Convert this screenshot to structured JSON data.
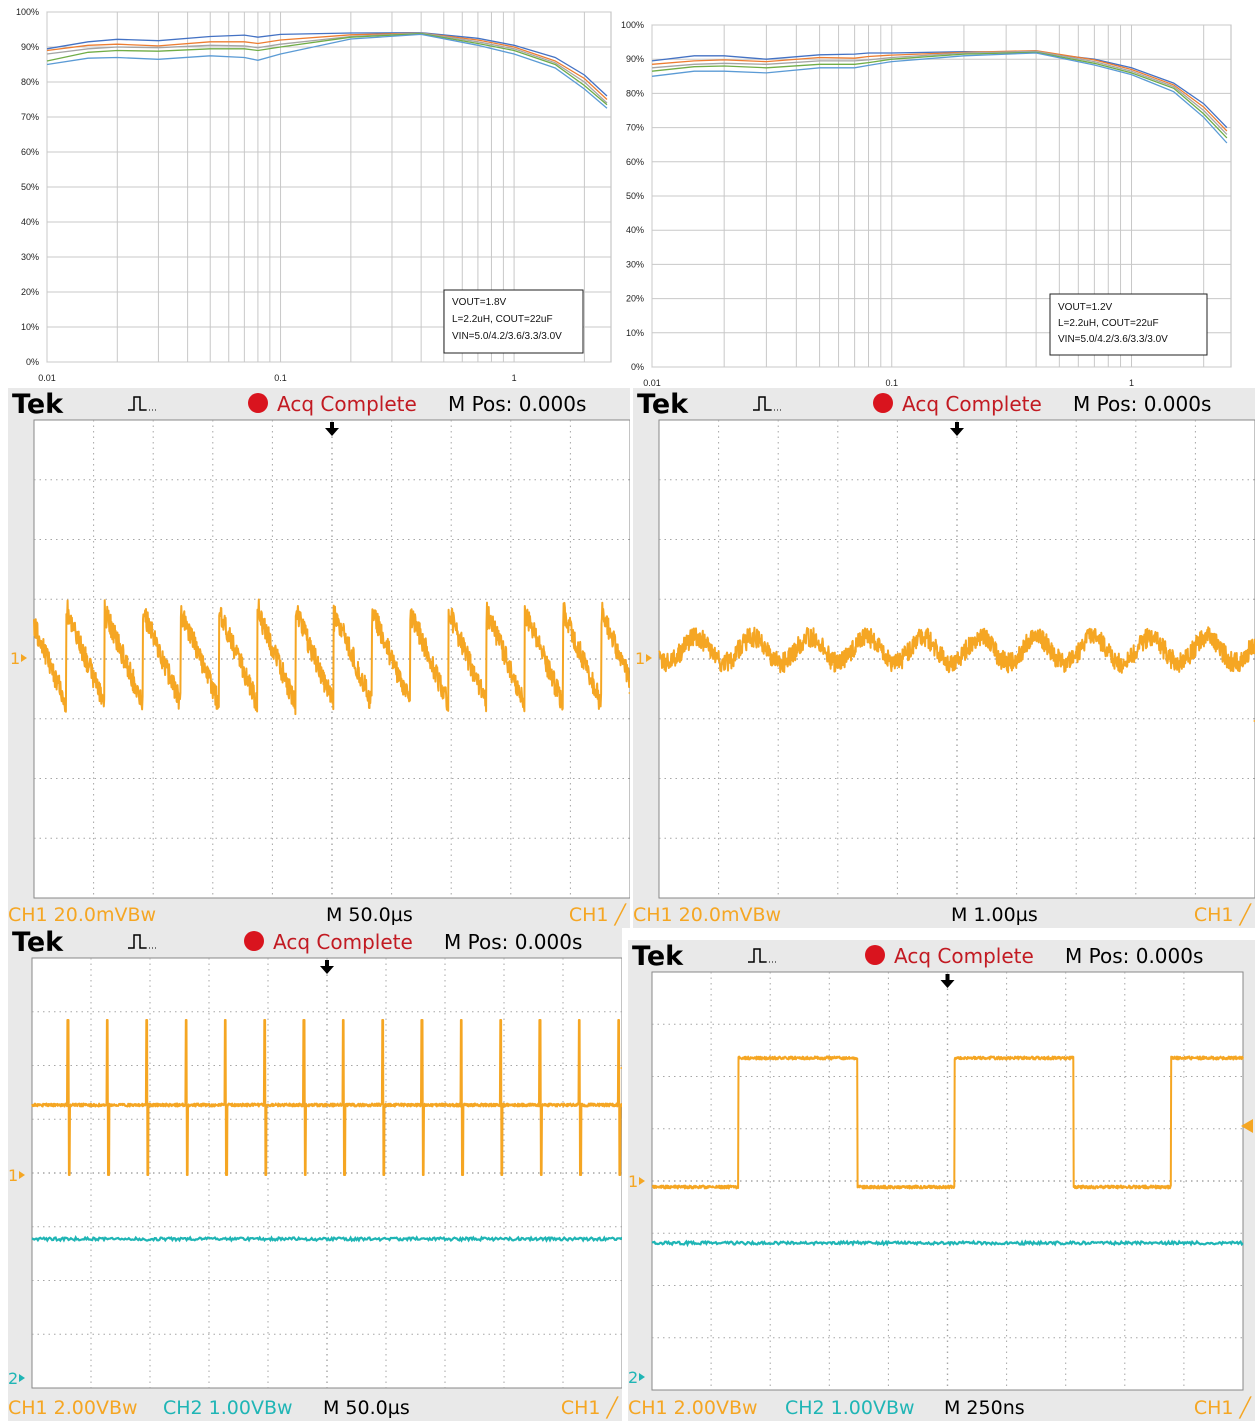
{
  "efficiency_charts": [
    {
      "legend": [
        "VOUT=1.8V",
        "L=2.2uH, COUT=22uF",
        "VIN=5.0/4.2/3.6/3.3/3.0V"
      ],
      "y_ticks": [
        "100%",
        "90%",
        "80%",
        "70%",
        "60%",
        "50%",
        "40%",
        "30%",
        "20%",
        "10%",
        "0%"
      ],
      "x_ticks": [
        "0.01",
        "0.1",
        "1"
      ]
    },
    {
      "legend": [
        "VOUT=1.2V",
        "L=2.2uH, COUT=22uF",
        "VIN=5.0/4.2/3.6/3.3/3.0V"
      ],
      "y_ticks": [
        "100%",
        "90%",
        "80%",
        "70%",
        "60%",
        "50%",
        "40%",
        "30%",
        "20%",
        "10%",
        "0%"
      ],
      "x_ticks": [
        "0.01",
        "0.1",
        "1"
      ]
    }
  ],
  "scopes": [
    {
      "brand": "Tek",
      "status": "Acq Complete",
      "mpos": "M Pos: 0.000s",
      "ch1_scale": "CH1  20.0mVBw",
      "ch2_scale": "",
      "timebase": "M 50.0µs",
      "trigger": "CH1 ╱",
      "ch1_marker": "1",
      "ch2_marker": ""
    },
    {
      "brand": "Tek",
      "status": "Acq Complete",
      "mpos": "M Pos: 0.000s",
      "ch1_scale": "CH1  20.0mVBw",
      "ch2_scale": "",
      "timebase": "M 1.00µs",
      "trigger": "CH1 ╱",
      "ch1_marker": "1",
      "ch2_marker": ""
    },
    {
      "brand": "Tek",
      "status": "Acq Complete",
      "mpos": "M Pos: 0.000s",
      "ch1_scale": "CH1  2.00VBw",
      "ch2_scale": "CH2  1.00VBw",
      "timebase": "M 50.0µs",
      "trigger": "CH1 ╱",
      "ch1_marker": "1",
      "ch2_marker": "2"
    },
    {
      "brand": "Tek",
      "status": "Acq Complete",
      "mpos": "M Pos: 0.000s",
      "ch1_scale": "CH1  2.00VBw",
      "ch2_scale": "CH2  1.00VBw",
      "timebase": "M 250ns",
      "trigger": "CH1 ╱",
      "ch1_marker": "1",
      "ch2_marker": "2"
    }
  ],
  "colors": {
    "ch1": "#f5a623",
    "ch2": "#1fb5b5",
    "status_dot": "#d9141e",
    "status_text": "#c21a22",
    "series": [
      "#4472c4",
      "#ed7d31",
      "#a5a5a5",
      "#70ad47",
      "#5b9bd5"
    ]
  },
  "chart_data": [
    {
      "type": "line",
      "xscale": "log",
      "xlim": [
        0.01,
        2.6
      ],
      "ylim": [
        0,
        100
      ],
      "grid": true,
      "legend_position": "bottom-right",
      "series": [
        {
          "x": [
            0.01,
            0.015,
            0.02,
            0.03,
            0.05,
            0.07,
            0.08,
            0.1,
            0.2,
            0.4,
            0.7,
            1.0,
            1.5,
            2.0,
            2.5
          ],
          "y": [
            89.5,
            91.5,
            92.2,
            91.8,
            93.0,
            93.4,
            92.8,
            93.6,
            94.0,
            94.1,
            92.5,
            90.5,
            87.0,
            82.0,
            76.0
          ]
        },
        {
          "x": [
            0.01,
            0.015,
            0.02,
            0.03,
            0.05,
            0.07,
            0.08,
            0.1,
            0.2,
            0.4,
            0.7,
            1.0,
            1.5,
            2.0,
            2.5
          ],
          "y": [
            89.0,
            90.5,
            90.8,
            90.3,
            91.5,
            91.5,
            91.0,
            92.0,
            93.5,
            94.0,
            92.0,
            90.0,
            86.0,
            81.0,
            75.0
          ]
        },
        {
          "x": [
            0.01,
            0.015,
            0.02,
            0.03,
            0.05,
            0.07,
            0.08,
            0.1,
            0.2,
            0.4,
            0.7,
            1.0,
            1.5,
            2.0,
            2.5
          ],
          "y": [
            88.0,
            89.5,
            90.0,
            89.8,
            90.5,
            90.3,
            89.8,
            90.8,
            93.0,
            94.0,
            91.5,
            89.5,
            85.5,
            80.0,
            74.0
          ]
        },
        {
          "x": [
            0.01,
            0.015,
            0.02,
            0.03,
            0.05,
            0.07,
            0.08,
            0.1,
            0.2,
            0.4,
            0.7,
            1.0,
            1.5,
            2.0,
            2.5
          ],
          "y": [
            86.0,
            88.5,
            89.0,
            88.8,
            89.5,
            89.5,
            89.0,
            90.0,
            92.8,
            93.8,
            91.0,
            89.0,
            85.0,
            79.0,
            73.5
          ]
        },
        {
          "x": [
            0.01,
            0.015,
            0.02,
            0.03,
            0.05,
            0.07,
            0.08,
            0.1,
            0.2,
            0.4,
            0.7,
            1.0,
            1.5,
            2.0,
            2.5
          ],
          "y": [
            85.0,
            86.8,
            87.0,
            86.5,
            87.5,
            87.0,
            86.2,
            88.0,
            92.3,
            93.6,
            90.5,
            88.0,
            84.0,
            78.0,
            72.5
          ]
        }
      ]
    },
    {
      "type": "line",
      "xscale": "log",
      "xlim": [
        0.01,
        2.6
      ],
      "ylim": [
        0,
        100
      ],
      "grid": true,
      "legend_position": "bottom-right",
      "series": [
        {
          "x": [
            0.01,
            0.015,
            0.02,
            0.03,
            0.05,
            0.07,
            0.08,
            0.1,
            0.2,
            0.4,
            0.7,
            1.0,
            1.5,
            2.0,
            2.5
          ],
          "y": [
            89.5,
            91.0,
            91.0,
            90.0,
            91.3,
            91.5,
            91.8,
            91.8,
            92.2,
            92.0,
            90.0,
            87.5,
            83.0,
            77.0,
            70.0
          ]
        },
        {
          "x": [
            0.01,
            0.015,
            0.02,
            0.03,
            0.05,
            0.07,
            0.08,
            0.1,
            0.2,
            0.4,
            0.7,
            1.0,
            1.5,
            2.0,
            2.5
          ],
          "y": [
            88.5,
            89.5,
            89.8,
            89.3,
            90.5,
            90.3,
            90.8,
            91.2,
            92.0,
            92.5,
            89.8,
            87.0,
            82.5,
            76.0,
            69.0
          ]
        },
        {
          "x": [
            0.01,
            0.015,
            0.02,
            0.03,
            0.05,
            0.07,
            0.08,
            0.1,
            0.2,
            0.4,
            0.7,
            1.0,
            1.5,
            2.0,
            2.5
          ],
          "y": [
            87.5,
            88.5,
            88.8,
            88.5,
            89.5,
            89.5,
            89.8,
            90.5,
            91.8,
            92.3,
            89.3,
            86.5,
            82.0,
            75.0,
            68.0
          ]
        },
        {
          "x": [
            0.01,
            0.015,
            0.02,
            0.03,
            0.05,
            0.07,
            0.08,
            0.1,
            0.2,
            0.4,
            0.7,
            1.0,
            1.5,
            2.0,
            2.5
          ],
          "y": [
            86.5,
            87.8,
            88.0,
            87.5,
            88.5,
            88.5,
            89.0,
            90.0,
            91.5,
            92.0,
            88.8,
            86.0,
            81.5,
            74.0,
            67.0
          ]
        },
        {
          "x": [
            0.01,
            0.015,
            0.02,
            0.03,
            0.05,
            0.07,
            0.08,
            0.1,
            0.2,
            0.4,
            0.7,
            1.0,
            1.5,
            2.0,
            2.5
          ],
          "y": [
            85.0,
            86.5,
            86.5,
            86.0,
            87.5,
            87.5,
            88.2,
            89.3,
            91.0,
            91.8,
            88.3,
            85.5,
            80.5,
            73.0,
            65.5
          ]
        }
      ]
    }
  ]
}
